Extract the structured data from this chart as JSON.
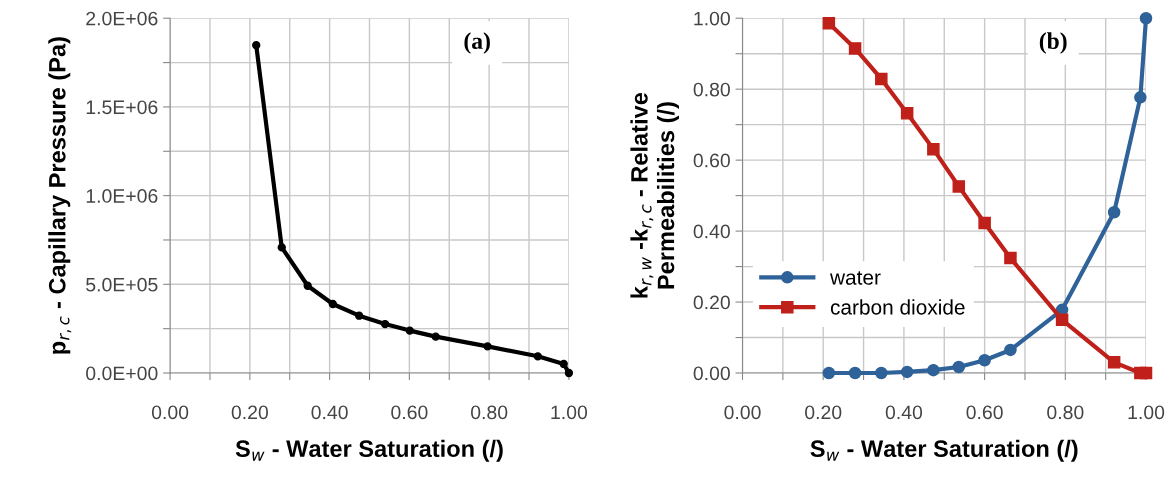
{
  "chart_data": [
    {
      "type": "line",
      "xlabel": "S$_{w}$ - Water Saturation (/)",
      "ylabel": "p$_{r,c}$ - Capillary Pressure (Pa)",
      "annotations": [
        "(a)"
      ],
      "x": [
        0.216,
        0.28,
        0.345,
        0.408,
        0.474,
        0.539,
        0.601,
        0.666,
        0.796,
        0.922,
        0.987,
        1.0
      ],
      "series": [
        {
          "color": "#000000",
          "marker": "circle",
          "values": [
            1848000,
            708000,
            492000,
            389000,
            323000,
            276000,
            239000,
            205000,
            150000,
            94000,
            51000,
            0
          ]
        }
      ],
      "xlim": [
        0,
        1
      ],
      "ylim": [
        0,
        2000000
      ],
      "xticks": [
        {
          "value": 0,
          "label": "0.00"
        },
        {
          "value": 0.1,
          "label": null
        },
        {
          "value": 0.2,
          "label": "0.20"
        },
        {
          "value": 0.3,
          "label": null
        },
        {
          "value": 0.4,
          "label": "0.40"
        },
        {
          "value": 0.5,
          "label": null
        },
        {
          "value": 0.6,
          "label": "0.60"
        },
        {
          "value": 0.7,
          "label": null
        },
        {
          "value": 0.8,
          "label": "0.80"
        },
        {
          "value": 0.9,
          "label": null
        },
        {
          "value": 1,
          "label": "1.00"
        }
      ],
      "yticks": [
        {
          "value": 0,
          "label": "0.0E+00"
        },
        {
          "value": 250000,
          "label": null
        },
        {
          "value": 500000,
          "label": "5.0E+05"
        },
        {
          "value": 750000,
          "label": null
        },
        {
          "value": 1000000,
          "label": "1.0E+06"
        },
        {
          "value": 1250000,
          "label": null
        },
        {
          "value": 1500000,
          "label": "1.5E+06"
        },
        {
          "value": 1750000,
          "label": null
        },
        {
          "value": 2000000,
          "label": "2.0E+06"
        }
      ],
      "grid": true,
      "line_style": "solid"
    },
    {
      "type": "line",
      "xlabel": "S$_{w}$ - Water Saturation (/)",
      "ylabel": "k$_{r,w}$ -k$_{r,c}$ - Relative\nPermeabilities (/)",
      "annotations": [
        "(b)"
      ],
      "x": [
        0.214,
        0.279,
        0.344,
        0.408,
        0.473,
        0.536,
        0.6,
        0.664,
        0.792,
        0.921,
        0.986,
        1.0
      ],
      "series": [
        {
          "name": "water",
          "color": "#2e6299",
          "marker": "circle",
          "values": [
            0,
            0,
            0,
            0.003,
            0.008,
            0.017,
            0.036,
            0.065,
            0.178,
            0.453,
            0.777,
            1.0
          ]
        },
        {
          "name": "carbon dioxide",
          "color": "#c0201a",
          "marker": "square",
          "values": [
            0.986,
            0.915,
            0.829,
            0.732,
            0.631,
            0.526,
            0.423,
            0.324,
            0.15,
            0.03,
            0,
            0
          ]
        }
      ],
      "xlim": [
        0,
        1
      ],
      "ylim": [
        0,
        1
      ],
      "xticks": [
        {
          "value": 0,
          "label": "0.00"
        },
        {
          "value": 0.1,
          "label": null
        },
        {
          "value": 0.2,
          "label": "0.20"
        },
        {
          "value": 0.3,
          "label": null
        },
        {
          "value": 0.4,
          "label": "0.40"
        },
        {
          "value": 0.5,
          "label": null
        },
        {
          "value": 0.6,
          "label": "0.60"
        },
        {
          "value": 0.7,
          "label": null
        },
        {
          "value": 0.8,
          "label": "0.80"
        },
        {
          "value": 0.9,
          "label": null
        },
        {
          "value": 1,
          "label": "1.00"
        }
      ],
      "yticks": [
        {
          "value": 0,
          "label": "0.00"
        },
        {
          "value": 0.1,
          "label": null
        },
        {
          "value": 0.2,
          "label": "0.20"
        },
        {
          "value": 0.3,
          "label": null
        },
        {
          "value": 0.4,
          "label": "0.40"
        },
        {
          "value": 0.5,
          "label": null
        },
        {
          "value": 0.6,
          "label": "0.60"
        },
        {
          "value": 0.7,
          "label": null
        },
        {
          "value": 0.8,
          "label": "0.80"
        },
        {
          "value": 0.9,
          "label": null
        },
        {
          "value": 1,
          "label": "1.00"
        }
      ],
      "grid": true,
      "legend": "bottom left",
      "line_style": "solid"
    }
  ]
}
